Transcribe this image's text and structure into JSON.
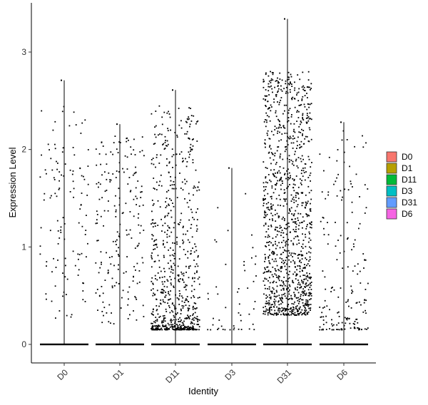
{
  "chart_data": {
    "type": "scatter",
    "subtype": "violin-jitter",
    "title": "",
    "xlabel": "Identity",
    "ylabel": "Expression Level",
    "categories": [
      "D0",
      "D1",
      "D11",
      "D3",
      "D31",
      "D6"
    ],
    "y_ticks": [
      "0",
      "1",
      "2",
      "3"
    ],
    "ylim": [
      -0.2,
      3.5
    ],
    "grid": false,
    "legend": {
      "placement": "right",
      "entries": [
        "D0",
        "D1",
        "D11",
        "D3",
        "D31",
        "D6"
      ]
    },
    "colors": {
      "D0": "#F8766D",
      "D1": "#B79F00",
      "D11": "#00BA38",
      "D3": "#00BFC4",
      "D31": "#619CFF",
      "D6": "#F564E3"
    },
    "series": [
      {
        "category": "D0",
        "max": 2.71,
        "n_nonzero": 120,
        "nonzero_range": [
          0.25,
          2.45
        ],
        "concentration": "uniform"
      },
      {
        "category": "D1",
        "max": 2.26,
        "n_nonzero": 200,
        "nonzero_range": [
          0.2,
          2.15
        ],
        "concentration": "uniform"
      },
      {
        "category": "D11",
        "max": 2.61,
        "n_nonzero": 720,
        "nonzero_range": [
          0.15,
          2.45
        ],
        "concentration": "low"
      },
      {
        "category": "D3",
        "max": 1.81,
        "n_nonzero": 50,
        "nonzero_range": [
          0.15,
          1.6
        ],
        "concentration": "low"
      },
      {
        "category": "D31",
        "max": 3.34,
        "n_nonzero": 1150,
        "nonzero_range": [
          0.3,
          2.8
        ],
        "concentration": "mid"
      },
      {
        "category": "D6",
        "max": 2.28,
        "n_nonzero": 180,
        "nonzero_range": [
          0.15,
          2.2
        ],
        "concentration": "low"
      }
    ]
  }
}
